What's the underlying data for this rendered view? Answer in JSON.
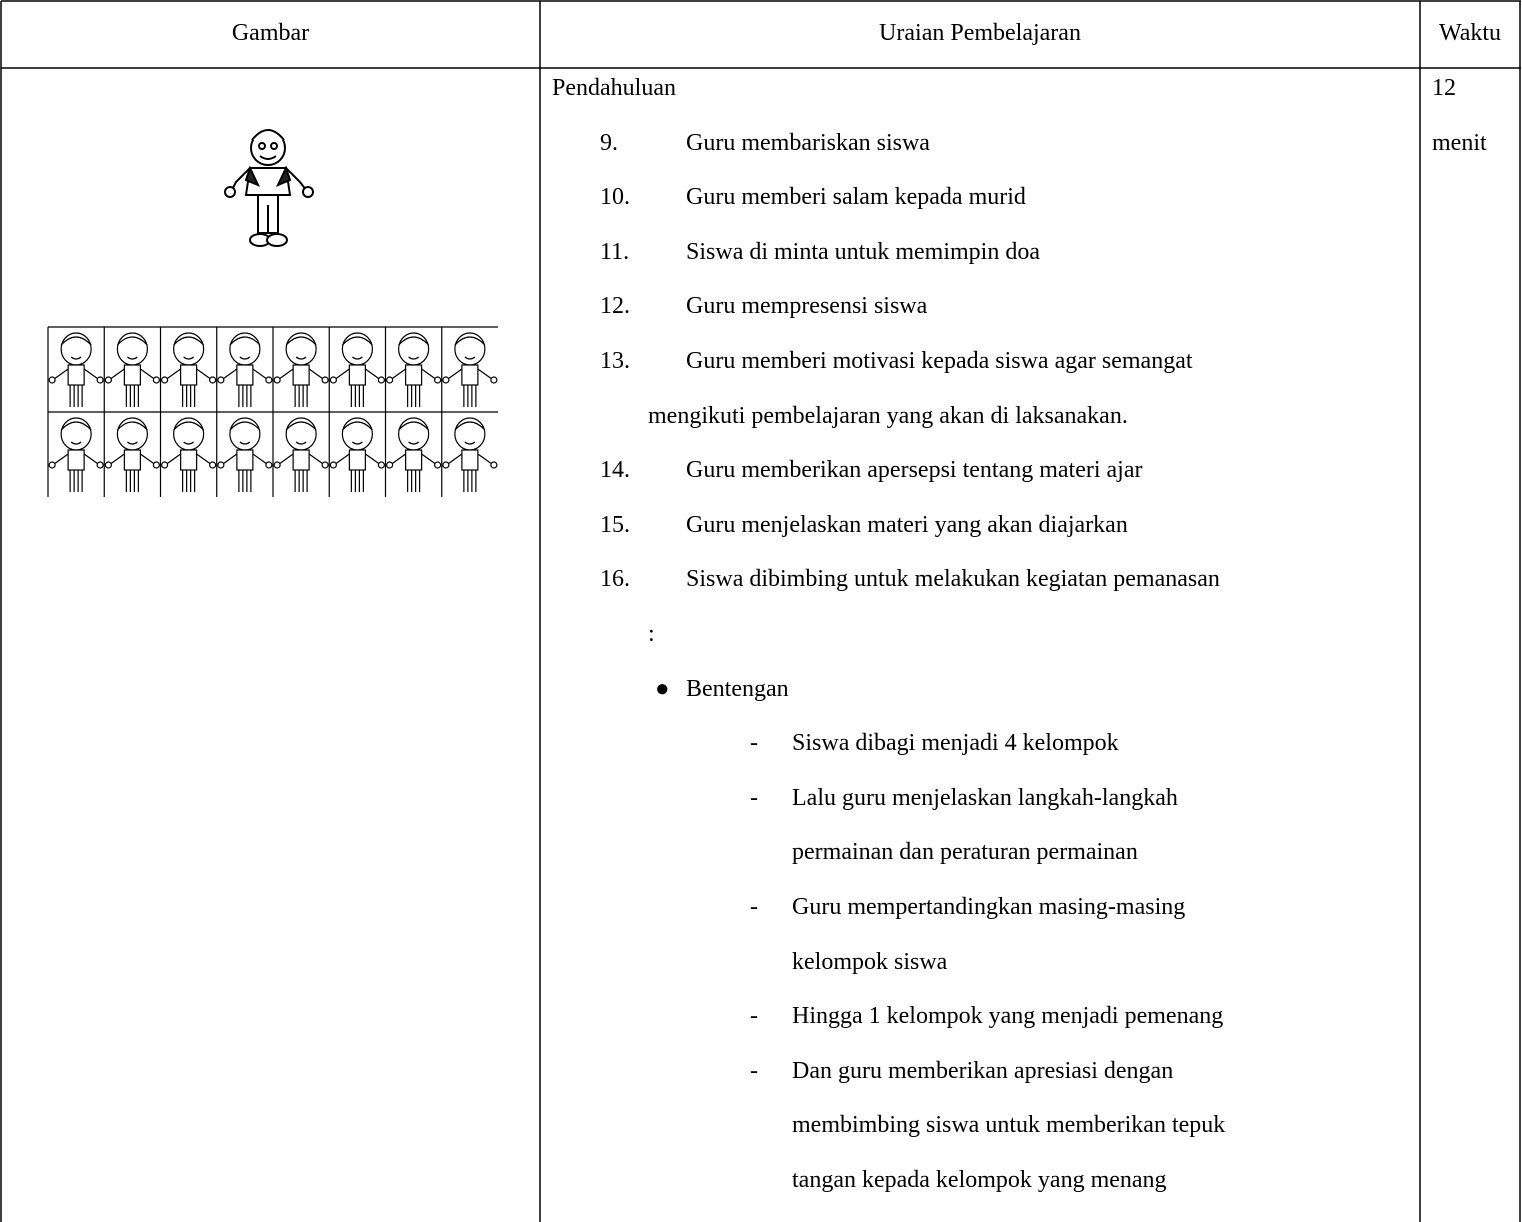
{
  "header": {
    "columns": [
      "Gambar",
      "Uraian Pembelajaran",
      "Waktu"
    ]
  },
  "row": {
    "section": "Pendahuluan",
    "items": [
      {
        "number": "9.",
        "lines": [
          "Guru membariskan siswa"
        ]
      },
      {
        "number": "10.",
        "lines": [
          "Guru memberi salam kepada murid"
        ]
      },
      {
        "number": "11.",
        "lines": [
          "Siswa di minta untuk memimpin doa"
        ]
      },
      {
        "number": "12.",
        "lines": [
          "Guru mempresensi siswa"
        ]
      },
      {
        "number": "13.",
        "lines": [
          "Guru memberi motivasi kepada siswa agar semangat",
          "mengikuti pembelajaran yang akan di laksanakan."
        ]
      },
      {
        "number": "14.",
        "lines": [
          "Guru memberikan apersepsi tentang materi ajar"
        ]
      },
      {
        "number": "15.",
        "lines": [
          "Guru menjelaskan materi yang akan diajarkan"
        ]
      },
      {
        "number": "16.",
        "lines": [
          "Siswa dibimbing untuk melakukan kegiatan pemanasan",
          ":"
        ]
      }
    ],
    "bullet": {
      "label": "Bentengan",
      "steps": [
        {
          "lines": [
            "Siswa dibagi menjadi 4 kelompok"
          ]
        },
        {
          "lines": [
            "Lalu guru menjelaskan langkah-langkah",
            "permainan dan peraturan permainan"
          ]
        },
        {
          "lines": [
            "Guru mempertandingkan masing-masing",
            "kelompok siswa"
          ]
        },
        {
          "lines": [
            "Hingga 1 kelompok yang menjadi pemenang"
          ]
        },
        {
          "lines": [
            "Dan guru memberikan apresiasi dengan",
            "membimbing siswa untuk memberikan tepuk",
            "tangan kepada kelompok yang menang"
          ]
        }
      ]
    },
    "time": {
      "lines": [
        "12",
        "menit"
      ]
    }
  }
}
